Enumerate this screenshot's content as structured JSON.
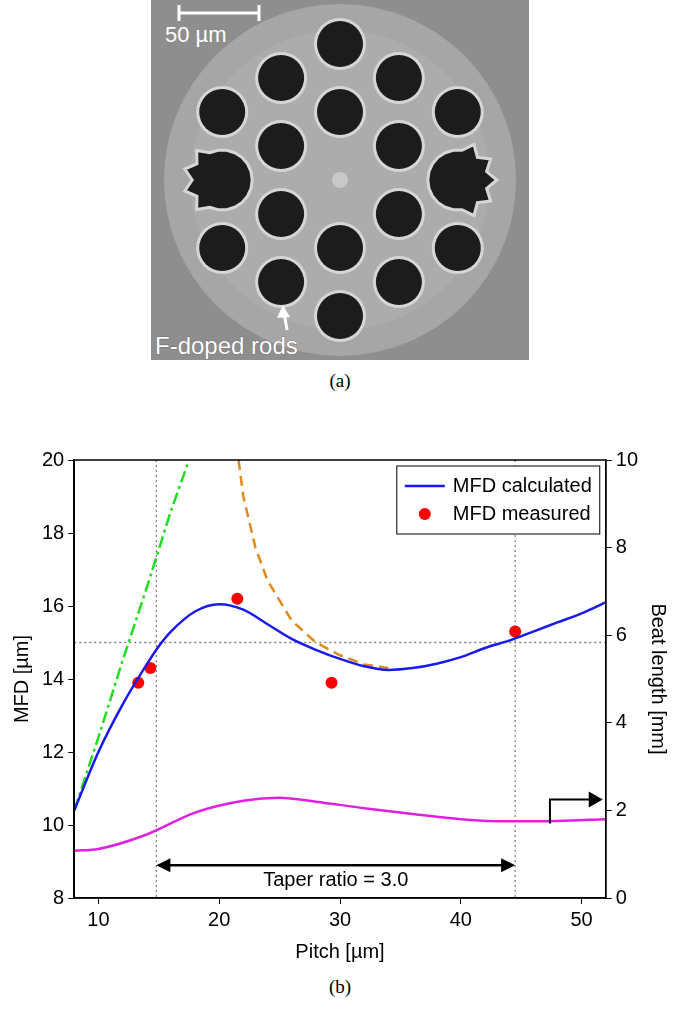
{
  "image": {
    "scale_bar": "50 µm",
    "label": "F-doped rods",
    "caption": "(a)"
  },
  "chart_data": {
    "type": "line",
    "caption": "(b)",
    "x_label": "Pitch [µm]",
    "y_label": "MFD [µm]",
    "y2_label": "Beat length [mm]",
    "xlim": [
      8,
      52
    ],
    "xticks": [
      10,
      20,
      30,
      40,
      50
    ],
    "ylim": [
      8,
      20
    ],
    "yticks": [
      8,
      10,
      12,
      14,
      16,
      18,
      20
    ],
    "y2lim": [
      0,
      10
    ],
    "y2ticks": [
      0,
      2,
      4,
      6,
      8,
      10
    ],
    "grid": false,
    "legend": "upper right",
    "series": [
      {
        "name": "MFD calculated",
        "type": "line",
        "color": "#1a1aee",
        "line_style": "solid",
        "marker": "none",
        "x": [
          8,
          10,
          12,
          14,
          15,
          16,
          18,
          20,
          22,
          24,
          26,
          28,
          30,
          32,
          34,
          36,
          38,
          40,
          42,
          44,
          46,
          48,
          50,
          52
        ],
        "values": [
          10.4,
          12.0,
          13.3,
          14.4,
          14.9,
          15.3,
          15.85,
          16.05,
          15.9,
          15.5,
          15.1,
          14.8,
          14.55,
          14.35,
          14.25,
          14.3,
          14.42,
          14.6,
          14.85,
          15.05,
          15.3,
          15.55,
          15.8,
          16.1
        ]
      },
      {
        "name": "MFD measured",
        "type": "scatter",
        "color": "#ff0000",
        "marker": "circle",
        "x": [
          13.3,
          14.3,
          21.5,
          29.3,
          44.5
        ],
        "values": [
          13.9,
          14.3,
          16.2,
          13.9,
          15.3
        ]
      },
      {
        "type": "line",
        "color": "#22dd22",
        "line_style": "dashdot",
        "marker": "none",
        "x": [
          8,
          10,
          12,
          14,
          16,
          17.5
        ],
        "values": [
          10.4,
          12.4,
          14.5,
          16.5,
          18.6,
          20
        ]
      },
      {
        "type": "line",
        "color": "#e08a1e",
        "line_style": "dashed",
        "marker": "none",
        "x": [
          21.6,
          22,
          23,
          24,
          26,
          28,
          30,
          32,
          34
        ],
        "values": [
          20,
          19.0,
          17.6,
          16.7,
          15.6,
          15.0,
          14.65,
          14.4,
          14.3
        ]
      },
      {
        "type": "line",
        "color": "#e020e0",
        "line_style": "solid",
        "marker": "none",
        "axis": "y2",
        "x": [
          8,
          10,
          14,
          18,
          22,
          25,
          28,
          32,
          36,
          40,
          44,
          48,
          52
        ],
        "values": [
          1.08,
          1.12,
          1.45,
          1.95,
          2.22,
          2.29,
          2.2,
          2.05,
          1.92,
          1.8,
          1.75,
          1.76,
          1.8
        ]
      }
    ],
    "reference_lines": {
      "x": [
        14.8,
        44.5
      ],
      "y": [
        15
      ]
    },
    "annotations": [
      {
        "text": "Taper ratio = 3.0",
        "x": [
          14.8,
          44.5
        ],
        "y": 8.9
      }
    ]
  }
}
